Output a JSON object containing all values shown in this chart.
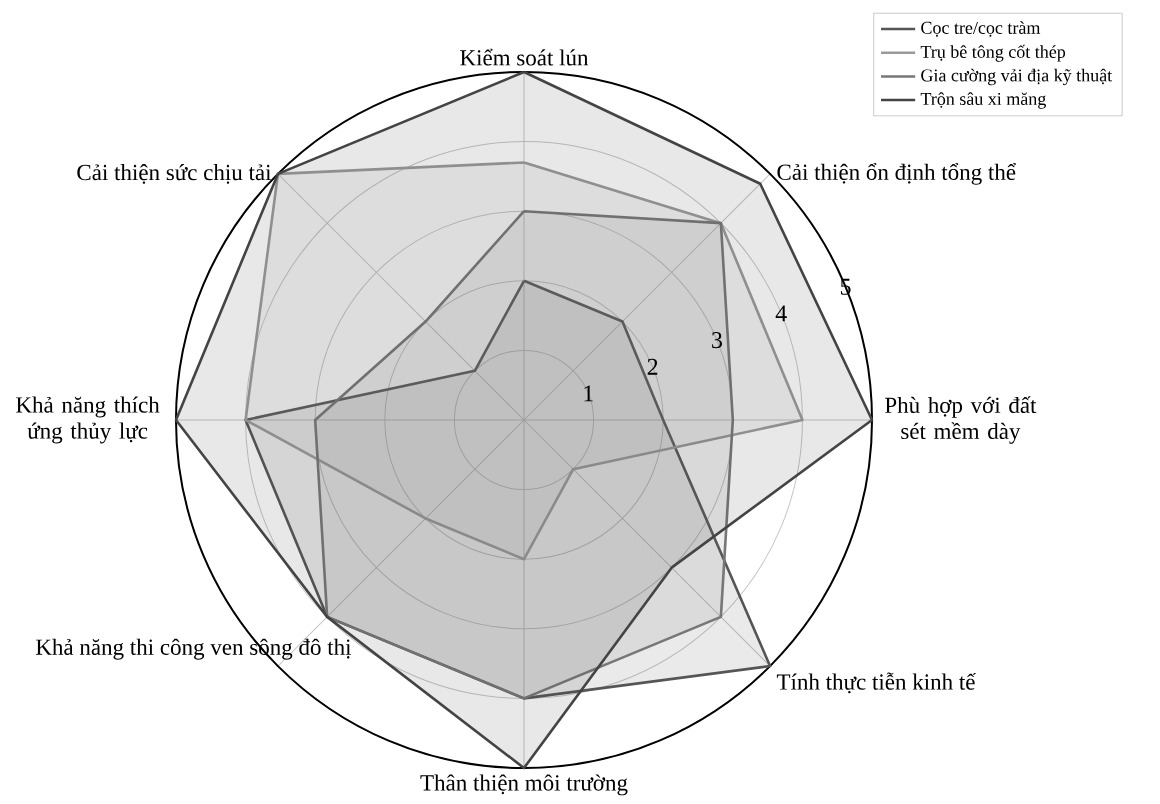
{
  "chart_data": {
    "type": "radar",
    "categories": [
      "Kiểm soát lún",
      "Cải thiện ổn định tổng thể",
      "Phù hợp với đất sét mềm dày",
      "Tính thực tiễn kinh tế",
      "Thân thiện môi trường",
      "Khả năng thi công ven sông đô thị",
      "Khả năng thích ứng thủy lực",
      "Cải thiện sức chịu tải"
    ],
    "series": [
      {
        "name": "Cọc tre/cọc tràm",
        "color": "#555555",
        "values": [
          2,
          2,
          2,
          5,
          4,
          4,
          4,
          1
        ]
      },
      {
        "name": "Trụ bê tông cốt thép",
        "color": "#9a9a9a",
        "values": [
          3.7,
          4,
          4,
          1,
          2,
          2,
          4,
          5
        ]
      },
      {
        "name": "Gia cường vải địa kỹ thuật",
        "color": "#777777",
        "values": [
          3,
          4,
          3,
          4,
          4,
          4,
          3,
          2
        ]
      },
      {
        "name": "Trộn sâu xi măng",
        "color": "#444444",
        "values": [
          5,
          4.8,
          5,
          3,
          5,
          4,
          5,
          5
        ]
      }
    ],
    "ylim": [
      0,
      5
    ],
    "yticks": [
      1,
      2,
      3,
      4,
      5
    ],
    "grid": true,
    "legend": "top right"
  }
}
